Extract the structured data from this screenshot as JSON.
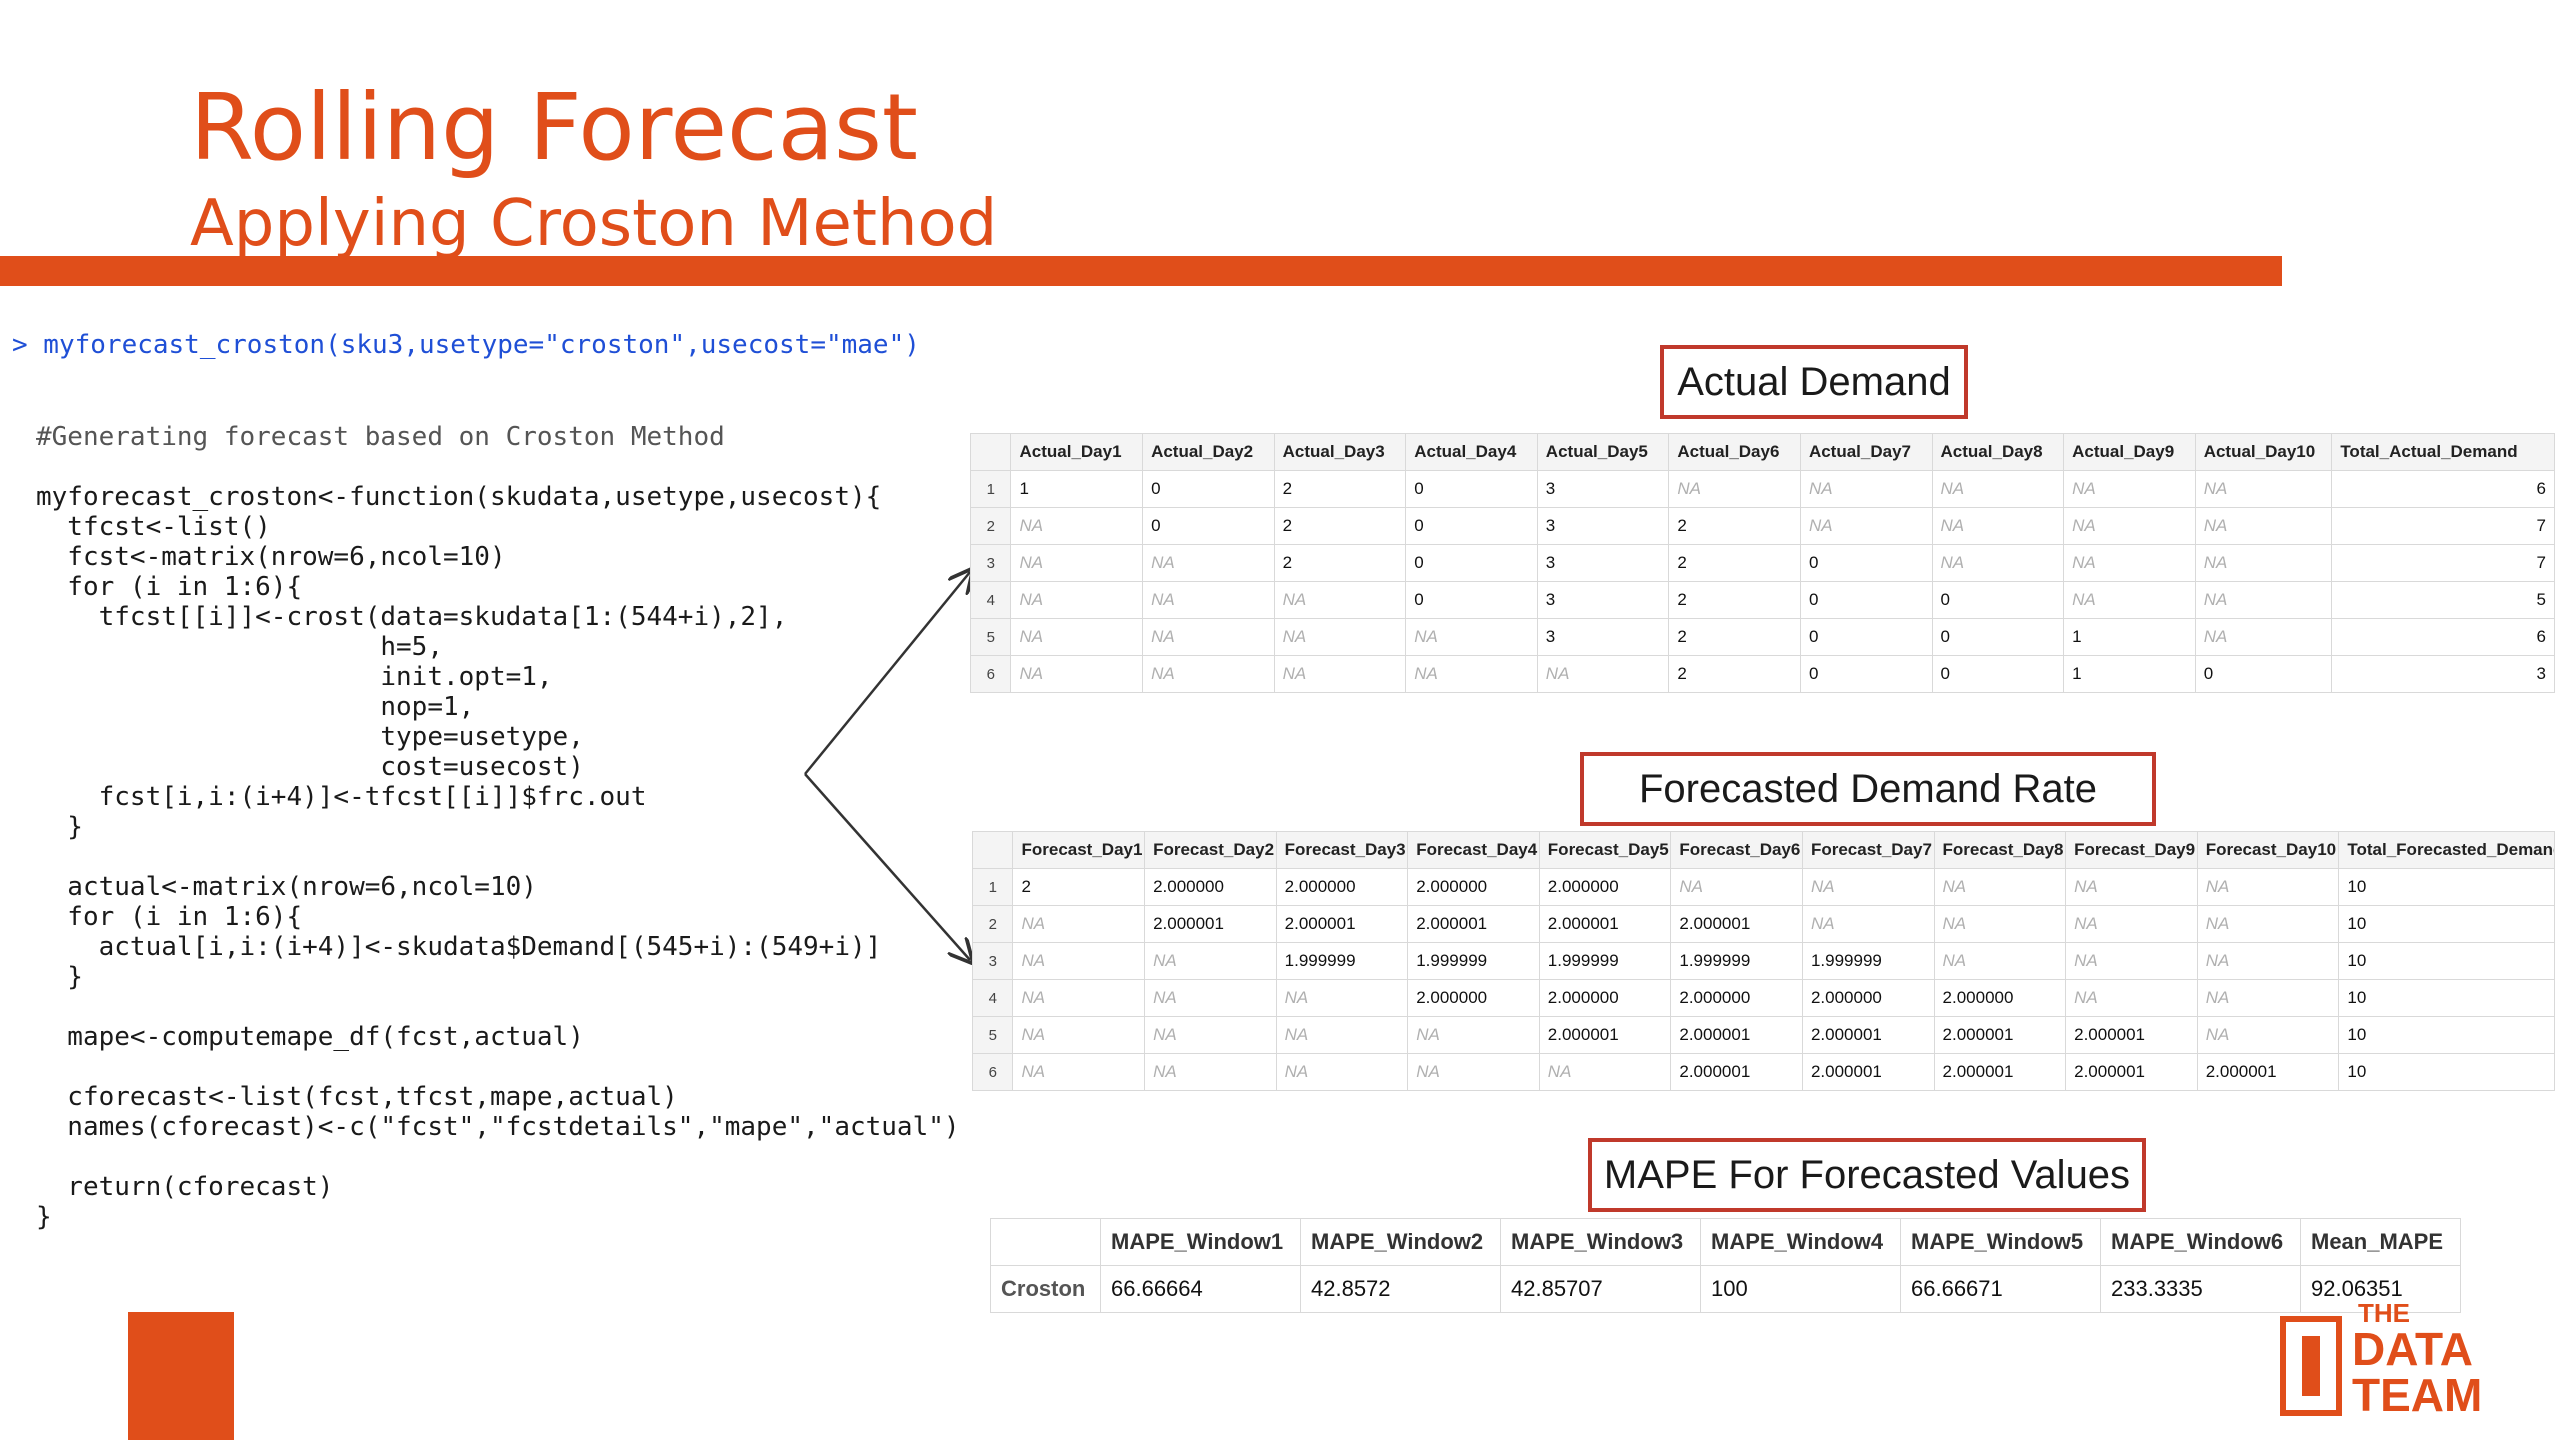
{
  "header": {
    "title": "Rolling Forecast",
    "subtitle": "Applying Croston Method"
  },
  "colors": {
    "accent": "#e04e1a",
    "box_border": "#c0392b"
  },
  "code": {
    "lines": [
      "> myforecast_croston(sku3,usetype=\"croston\",usecost=\"mae\")",
      "#Generating forecast based on Croston Method",
      "myforecast_croston<-function(skudata,usetype,usecost){",
      "  tfcst<-list()",
      "  fcst<-matrix(nrow=6,ncol=10)",
      "  for (i in 1:6){",
      "    tfcst[[i]]<-crost(data=skudata[1:(544+i),2],",
      "                      h=5,",
      "                      init.opt=1,",
      "                      nop=1,",
      "                      type=usetype,",
      "                      cost=usecost)",
      "    fcst[i,i:(i+4)]<-tfcst[[i]]$frc.out",
      "  }",
      "  actual<-matrix(nrow=6,ncol=10)",
      "  for (i in 1:6){",
      "    actual[i,i:(i+4)]<-skudata$Demand[(545+i):(549+i)]",
      "  }",
      "  mape<-computemape_df(fcst,actual)",
      "  cforecast<-list(fcst,tfcst,mape,actual)",
      "  names(cforecast)<-c(\"fcst\",\"fcstdetails\",\"mape\",\"actual\")",
      "  return(cforecast)",
      "}"
    ]
  },
  "actual": {
    "label": "Actual Demand",
    "columns": [
      "Actual_Day1",
      "Actual_Day2",
      "Actual_Day3",
      "Actual_Day4",
      "Actual_Day5",
      "Actual_Day6",
      "Actual_Day7",
      "Actual_Day8",
      "Actual_Day9",
      "Actual_Day10",
      "Total_Actual_Demand"
    ],
    "rows": [
      {
        "idx": "1",
        "cells": [
          "1",
          "0",
          "2",
          "0",
          "3",
          "NA",
          "NA",
          "NA",
          "NA",
          "NA"
        ],
        "total": "6"
      },
      {
        "idx": "2",
        "cells": [
          "NA",
          "0",
          "2",
          "0",
          "3",
          "2",
          "NA",
          "NA",
          "NA",
          "NA"
        ],
        "total": "7"
      },
      {
        "idx": "3",
        "cells": [
          "NA",
          "NA",
          "2",
          "0",
          "3",
          "2",
          "0",
          "NA",
          "NA",
          "NA"
        ],
        "total": "7"
      },
      {
        "idx": "4",
        "cells": [
          "NA",
          "NA",
          "NA",
          "0",
          "3",
          "2",
          "0",
          "0",
          "NA",
          "NA"
        ],
        "total": "5"
      },
      {
        "idx": "5",
        "cells": [
          "NA",
          "NA",
          "NA",
          "NA",
          "3",
          "2",
          "0",
          "0",
          "1",
          "NA"
        ],
        "total": "6"
      },
      {
        "idx": "6",
        "cells": [
          "NA",
          "NA",
          "NA",
          "NA",
          "NA",
          "2",
          "0",
          "0",
          "1",
          "0"
        ],
        "total": "3"
      }
    ]
  },
  "forecast": {
    "label": "Forecasted Demand Rate",
    "columns": [
      "Forecast_Day1",
      "Forecast_Day2",
      "Forecast_Day3",
      "Forecast_Day4",
      "Forecast_Day5",
      "Forecast_Day6",
      "Forecast_Day7",
      "Forecast_Day8",
      "Forecast_Day9",
      "Forecast_Day10",
      "Total_Forecasted_Demand"
    ],
    "rows": [
      {
        "idx": "1",
        "cells": [
          "2",
          "2.000000",
          "2.000000",
          "2.000000",
          "2.000000",
          "NA",
          "NA",
          "NA",
          "NA",
          "NA"
        ],
        "total": "10"
      },
      {
        "idx": "2",
        "cells": [
          "NA",
          "2.000001",
          "2.000001",
          "2.000001",
          "2.000001",
          "2.000001",
          "NA",
          "NA",
          "NA",
          "NA"
        ],
        "total": "10"
      },
      {
        "idx": "3",
        "cells": [
          "NA",
          "NA",
          "1.999999",
          "1.999999",
          "1.999999",
          "1.999999",
          "1.999999",
          "NA",
          "NA",
          "NA"
        ],
        "total": "10"
      },
      {
        "idx": "4",
        "cells": [
          "NA",
          "NA",
          "NA",
          "2.000000",
          "2.000000",
          "2.000000",
          "2.000000",
          "2.000000",
          "NA",
          "NA"
        ],
        "total": "10"
      },
      {
        "idx": "5",
        "cells": [
          "NA",
          "NA",
          "NA",
          "NA",
          "2.000001",
          "2.000001",
          "2.000001",
          "2.000001",
          "2.000001",
          "NA"
        ],
        "total": "10"
      },
      {
        "idx": "6",
        "cells": [
          "NA",
          "NA",
          "NA",
          "NA",
          "NA",
          "2.000001",
          "2.000001",
          "2.000001",
          "2.000001",
          "2.000001"
        ],
        "total": "10"
      }
    ]
  },
  "mape": {
    "label": "MAPE For Forecasted Values",
    "columns": [
      "MAPE_Window1",
      "MAPE_Window2",
      "MAPE_Window3",
      "MAPE_Window4",
      "MAPE_Window5",
      "MAPE_Window6",
      "Mean_MAPE"
    ],
    "row_name": "Croston",
    "values": [
      "66.66664",
      "42.8572",
      "42.85707",
      "100",
      "66.66671",
      "233.3335",
      "92.06351"
    ]
  },
  "logo": {
    "line1": "THE",
    "line2": "DATA",
    "line3": "TEAM"
  }
}
